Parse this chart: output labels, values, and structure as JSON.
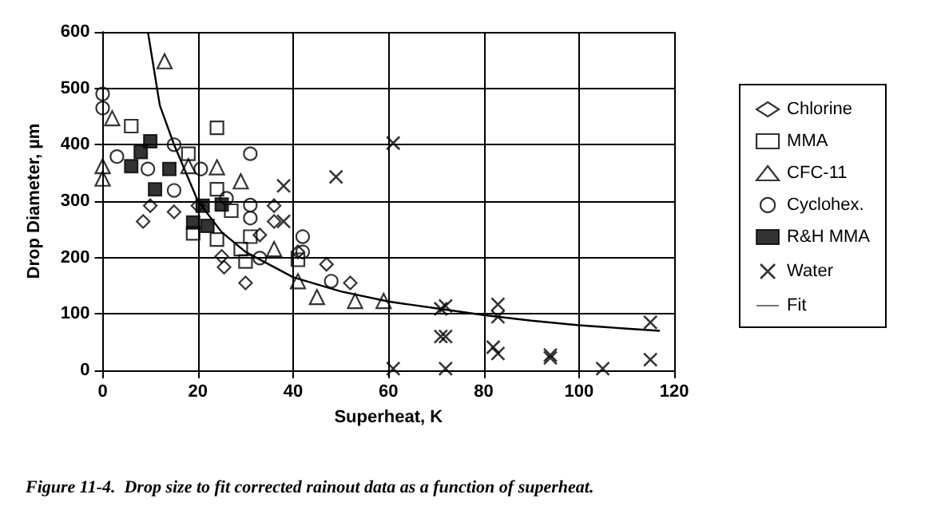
{
  "chart_data": {
    "type": "scatter",
    "xlabel": "Superheat, K",
    "ylabel": "Drop Diameter, µm",
    "xlim": [
      0,
      120
    ],
    "xticks": [
      0,
      20,
      40,
      60,
      80,
      100,
      120
    ],
    "ylim": [
      0,
      600
    ],
    "yticks": [
      0,
      100,
      200,
      300,
      400,
      500,
      600
    ],
    "grid": true,
    "legend": "right",
    "annotations": [
      "Figure 11-4.  Drop size to fit corrected rainout data as a function of superheat."
    ],
    "series": [
      {
        "name": "Chlorine",
        "color": "#000000",
        "marker": "diamond",
        "x": [
          8.5,
          10,
          15,
          20,
          25,
          25.5,
          30,
          36,
          36,
          47,
          52,
          41,
          33
        ],
        "values": [
          264,
          292,
          281,
          292,
          202,
          183,
          155,
          292,
          264,
          188,
          155,
          210,
          240
        ]
      },
      {
        "name": "MMA",
        "color": "#000000",
        "marker": "square",
        "x": [
          6,
          24,
          18,
          24,
          27,
          19,
          24,
          29,
          31,
          30,
          41
        ],
        "values": [
          433,
          430,
          384,
          321,
          283,
          243,
          232,
          215,
          237,
          193,
          196
        ]
      },
      {
        "name": "CFC-11",
        "color": "#000000",
        "marker": "triangle",
        "x": [
          13,
          2,
          0,
          0,
          18,
          24,
          29,
          36,
          41,
          45,
          53,
          59
        ],
        "values": [
          548,
          447,
          362,
          340,
          362,
          360,
          335,
          215,
          158,
          130,
          123,
          123
        ]
      },
      {
        "name": "Cyclohex.",
        "color": "#000000",
        "marker": "circle",
        "x": [
          0,
          0,
          3,
          9.5,
          15,
          20.6,
          31,
          15,
          26,
          31,
          31,
          42,
          42,
          48,
          33
        ],
        "values": [
          490,
          465,
          379,
          357,
          400,
          357,
          384,
          319,
          305,
          293,
          270,
          237,
          210,
          158,
          199
        ]
      },
      {
        "name": "R&H MMA",
        "color": "#000000",
        "marker": "square",
        "x": [
          6,
          8,
          10,
          14,
          11,
          19,
          22,
          21,
          25
        ],
        "values": [
          362,
          387,
          406,
          357,
          321,
          262,
          256,
          292,
          294
        ]
      },
      {
        "name": "Water",
        "color": "#000000",
        "marker": "cross",
        "x": [
          38,
          49,
          61,
          38,
          71,
          71,
          61,
          72,
          72,
          72,
          83,
          83,
          82,
          83,
          94,
          94,
          105,
          115,
          115
        ],
        "values": [
          327,
          343,
          403,
          264,
          109,
          60,
          3,
          114,
          60,
          3,
          117,
          95,
          41,
          30,
          27,
          22,
          3,
          85,
          19
        ]
      },
      {
        "name": "Fit",
        "type": "line",
        "color": "#000000",
        "marker": "none",
        "x": [
          9.5,
          12,
          15,
          20,
          25,
          30,
          40,
          50,
          60,
          70,
          80,
          90,
          100,
          110,
          117
        ],
        "values": [
          600,
          470,
          400,
          300,
          245,
          210,
          165,
          140,
          122,
          110,
          98,
          88,
          80,
          74,
          70
        ]
      }
    ]
  }
}
